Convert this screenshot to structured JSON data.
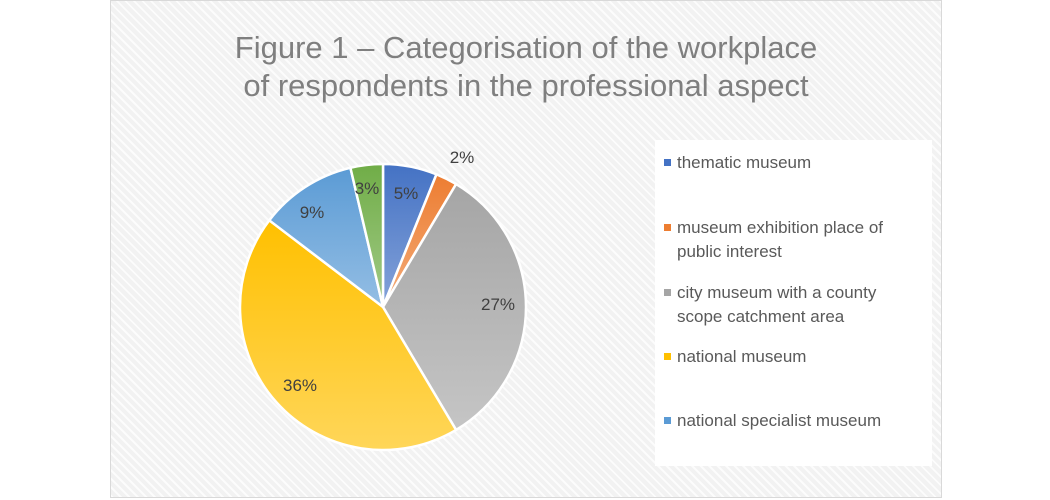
{
  "chart_data": {
    "type": "pie",
    "title_lines": [
      "Figure 1 – Categorisation of the workplace",
      "of respondents in the professional aspect"
    ],
    "start_angle_deg": 0,
    "direction": "clockwise",
    "slices": [
      {
        "label": "thematic museum",
        "value": 5,
        "display": "5%",
        "color": "#4472C4"
      },
      {
        "label": "museum exhibition place of public interest",
        "value": 2,
        "display": "2%",
        "color": "#ED7D31"
      },
      {
        "label": "city museum with a county scope catchment area",
        "value": 27,
        "display": "27%",
        "color": "#A5A5A5"
      },
      {
        "label": "national museum",
        "value": 36,
        "display": "36%",
        "color": "#FFC000"
      },
      {
        "label": "national specialist museum",
        "value": 9,
        "display": "9%",
        "color": "#5B9BD5"
      },
      {
        "label": "",
        "value": 3,
        "display": "3%",
        "color": "#70AD47"
      }
    ],
    "legend_position": "right",
    "legend_items": [
      {
        "lines": [
          "thematic museum"
        ],
        "color": "#4472C4"
      },
      {
        "lines": [
          "museum exhibition place of",
          "public interest"
        ],
        "color": "#ED7D31"
      },
      {
        "lines": [
          "city museum with a county",
          "scope catchment area"
        ],
        "color": "#A5A5A5"
      },
      {
        "lines": [
          "national museum"
        ],
        "color": "#FFC000"
      },
      {
        "lines": [
          "national specialist museum"
        ],
        "color": "#5B9BD5"
      }
    ]
  }
}
